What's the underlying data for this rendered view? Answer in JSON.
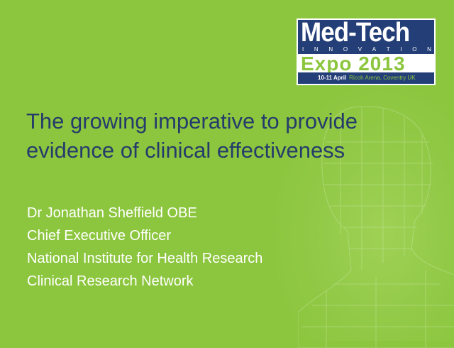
{
  "logo": {
    "line1": "Med-Tech",
    "line2_letters": [
      "I",
      "N",
      "N",
      "O",
      "V",
      "A",
      "T",
      "I",
      "O",
      "N"
    ],
    "line3": "Expo 2013",
    "dates": "10-11 April",
    "venue": "Ricoh Arena, Coventry UK"
  },
  "slide": {
    "title": "The growing imperative to provide evidence of clinical effectiveness",
    "subtitle_lines": [
      "Dr Jonathan Sheffield OBE",
      "Chief Executive Officer",
      "National Institute for Health Research",
      "Clinical Research Network"
    ]
  },
  "colors": {
    "background": "#8cc63e",
    "navy": "#243f78",
    "title": "#253c6b"
  }
}
